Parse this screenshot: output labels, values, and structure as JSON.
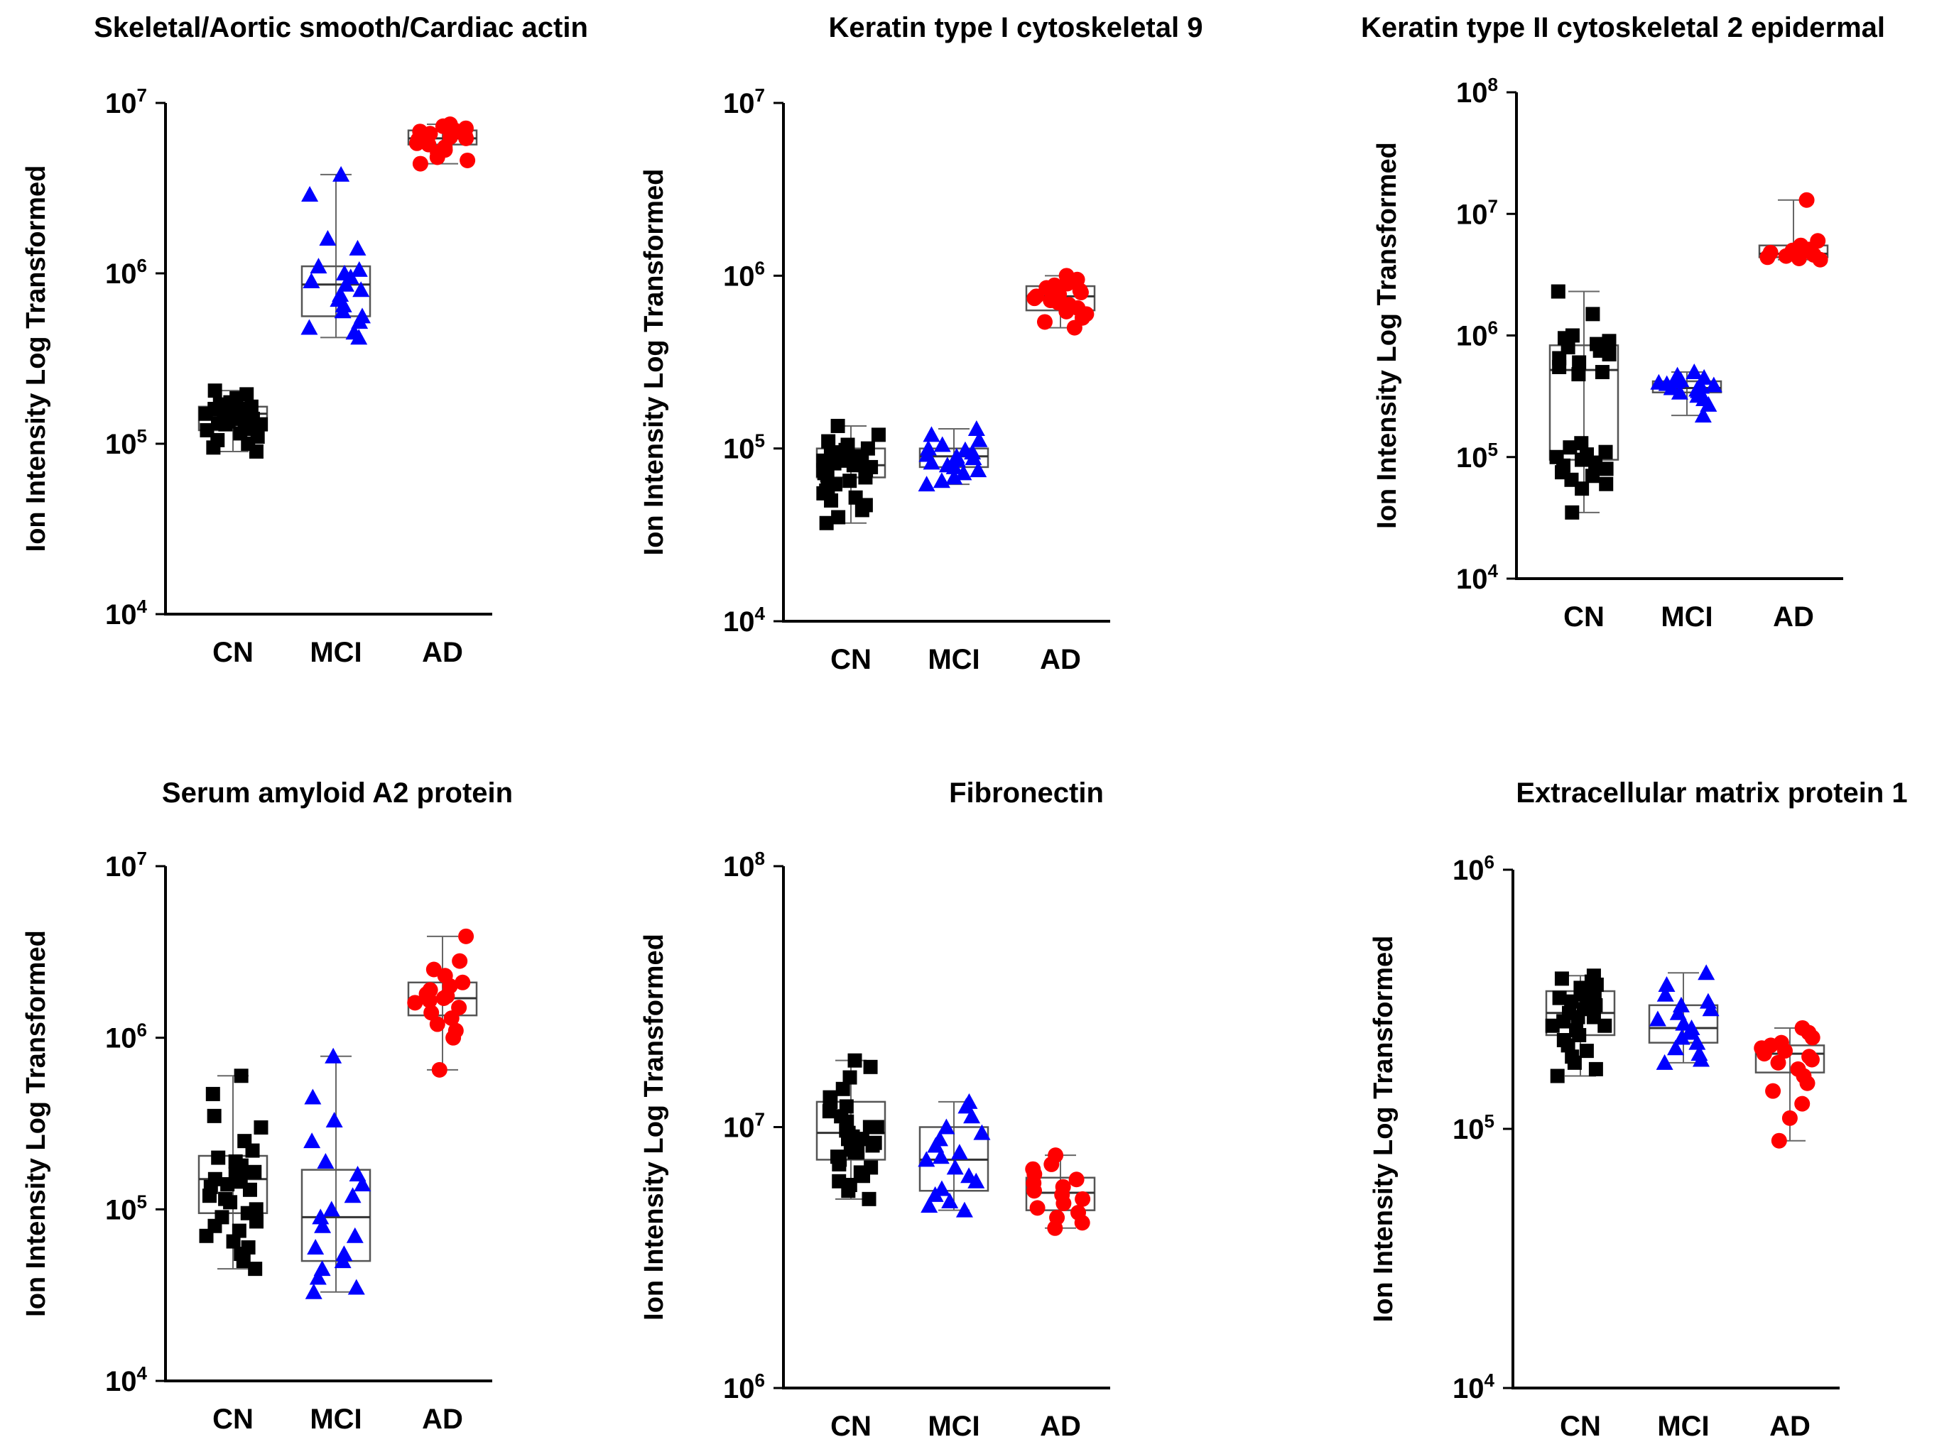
{
  "chart_data": [
    {
      "type": "box-scatter",
      "title": "Skeletal/Aortic smooth/Cardiac actin",
      "ylabel": "Ion Intensity Log  Transformed",
      "yscale": "log",
      "ylim_exp": [
        4,
        7
      ],
      "yticks_exp": [
        4,
        5,
        6,
        7
      ],
      "categories": [
        "CN",
        "MCI",
        "AD"
      ],
      "series": [
        {
          "name": "CN",
          "color": "#000000",
          "marker": "square",
          "box": {
            "min": 90000,
            "q1": 120000,
            "median": 150000,
            "q3": 165000,
            "max": 205000
          },
          "values": [
            205000,
            195000,
            185000,
            175000,
            170000,
            165000,
            160000,
            158000,
            155000,
            152000,
            150000,
            148000,
            145000,
            142000,
            140000,
            138000,
            135000,
            132000,
            130000,
            128000,
            125000,
            122000,
            120000,
            115000,
            110000,
            105000,
            100000,
            95000,
            90000,
            160000,
            150000,
            140000,
            130000,
            145000,
            155000
          ]
        },
        {
          "name": "MCI",
          "color": "#0000ff",
          "marker": "triangle",
          "box": {
            "min": 420000,
            "q1": 560000,
            "median": 860000,
            "q3": 1100000,
            "max": 3800000
          },
          "values": [
            3800000,
            2900000,
            1600000,
            1400000,
            1100000,
            1050000,
            1000000,
            950000,
            900000,
            860000,
            800000,
            750000,
            700000,
            650000,
            600000,
            560000,
            520000,
            480000,
            450000,
            420000
          ]
        },
        {
          "name": "AD",
          "color": "#ff0000",
          "marker": "circle",
          "box": {
            "min": 4400000,
            "q1": 5700000,
            "median": 6200000,
            "q3": 6900000,
            "max": 7500000
          },
          "values": [
            7500000,
            7300000,
            7100000,
            6900000,
            6800000,
            6600000,
            6400000,
            6300000,
            6200000,
            6100000,
            6000000,
            5900000,
            5800000,
            5700000,
            5500000,
            5300000,
            5100000,
            4800000,
            4600000,
            4400000
          ]
        }
      ]
    },
    {
      "type": "box-scatter",
      "title": "Keratin type I cytoskeletal 9",
      "ylabel": "Ion Intensity Log  Transformed",
      "yscale": "log",
      "ylim_exp": [
        4,
        7
      ],
      "yticks_exp": [
        4,
        5,
        6,
        7
      ],
      "categories": [
        "CN",
        "MCI",
        "AD"
      ],
      "series": [
        {
          "name": "CN",
          "color": "#000000",
          "marker": "square",
          "box": {
            "min": 37000,
            "q1": 68000,
            "median": 80000,
            "q3": 100000,
            "max": 135000
          },
          "values": [
            135000,
            120000,
            110000,
            105000,
            100000,
            98000,
            95000,
            92000,
            90000,
            88000,
            85000,
            82000,
            80000,
            78000,
            75000,
            72000,
            70000,
            68000,
            65000,
            62000,
            60000,
            57000,
            55000,
            52000,
            50000,
            47000,
            44000,
            40000,
            37000,
            90000,
            85000,
            75000
          ]
        },
        {
          "name": "MCI",
          "color": "#0000ff",
          "marker": "triangle",
          "box": {
            "min": 62000,
            "q1": 78000,
            "median": 90000,
            "q3": 100000,
            "max": 130000
          },
          "values": [
            130000,
            120000,
            112000,
            105000,
            100000,
            98000,
            95000,
            92000,
            90000,
            88000,
            86000,
            83000,
            80000,
            78000,
            75000,
            72000,
            68000,
            65000,
            62000
          ]
        },
        {
          "name": "AD",
          "color": "#ff0000",
          "marker": "circle",
          "box": {
            "min": 500000,
            "q1": 630000,
            "median": 760000,
            "q3": 870000,
            "max": 1000000
          },
          "values": [
            1000000,
            950000,
            900000,
            880000,
            850000,
            820000,
            800000,
            780000,
            760000,
            740000,
            720000,
            700000,
            680000,
            650000,
            620000,
            600000,
            570000,
            540000,
            500000
          ]
        }
      ]
    },
    {
      "type": "box-scatter",
      "title": "Keratin type II cytoskeletal 2 epidermal",
      "ylabel": "Ion Intensity Log  Transformed",
      "yscale": "log",
      "ylim_exp": [
        4,
        8
      ],
      "yticks_exp": [
        4,
        5,
        6,
        7,
        8
      ],
      "categories": [
        "CN",
        "MCI",
        "AD"
      ],
      "series": [
        {
          "name": "CN",
          "color": "#000000",
          "marker": "square",
          "box": {
            "min": 35000,
            "q1": 95000,
            "median": 520000,
            "q3": 830000,
            "max": 2300000
          },
          "values": [
            2300000,
            1500000,
            1000000,
            950000,
            900000,
            850000,
            800000,
            750000,
            700000,
            650000,
            600000,
            550000,
            500000,
            480000,
            130000,
            120000,
            110000,
            105000,
            100000,
            95000,
            90000,
            85000,
            80000,
            75000,
            70000,
            65000,
            60000,
            55000,
            35000
          ]
        },
        {
          "name": "MCI",
          "color": "#0000ff",
          "marker": "triangle",
          "box": {
            "min": 220000,
            "q1": 340000,
            "median": 370000,
            "q3": 420000,
            "max": 500000
          },
          "values": [
            500000,
            470000,
            450000,
            430000,
            420000,
            410000,
            400000,
            390000,
            380000,
            370000,
            360000,
            350000,
            340000,
            320000,
            300000,
            270000,
            220000
          ]
        },
        {
          "name": "AD",
          "color": "#ff0000",
          "marker": "circle",
          "box": {
            "min": 4200000,
            "q1": 4400000,
            "median": 4700000,
            "q3": 5500000,
            "max": 13000000
          },
          "values": [
            13000000,
            6000000,
            5500000,
            5300000,
            5100000,
            5000000,
            4900000,
            4800000,
            4700000,
            4600000,
            4500000,
            4400000,
            4300000,
            4200000
          ]
        }
      ]
    },
    {
      "type": "box-scatter",
      "title": "Serum amyloid A2 protein",
      "ylabel": "Ion Intensity Log  Transformed",
      "yscale": "log",
      "ylim_exp": [
        4,
        7
      ],
      "yticks_exp": [
        4,
        5,
        6,
        7
      ],
      "categories": [
        "CN",
        "MCI",
        "AD"
      ],
      "series": [
        {
          "name": "CN",
          "color": "#000000",
          "marker": "square",
          "box": {
            "min": 45000,
            "q1": 95000,
            "median": 150000,
            "q3": 205000,
            "max": 600000
          },
          "values": [
            600000,
            470000,
            350000,
            300000,
            250000,
            220000,
            200000,
            190000,
            180000,
            170000,
            160000,
            150000,
            145000,
            140000,
            130000,
            120000,
            110000,
            100000,
            95000,
            90000,
            85000,
            80000,
            75000,
            70000,
            65000,
            60000,
            55000,
            50000,
            45000,
            165000,
            135000,
            115000
          ]
        },
        {
          "name": "MCI",
          "color": "#0000ff",
          "marker": "triangle",
          "box": {
            "min": 33000,
            "q1": 50000,
            "median": 90000,
            "q3": 170000,
            "max": 780000
          },
          "values": [
            780000,
            450000,
            330000,
            250000,
            190000,
            160000,
            140000,
            120000,
            100000,
            90000,
            80000,
            70000,
            60000,
            55000,
            50000,
            45000,
            40000,
            35000,
            33000
          ]
        },
        {
          "name": "AD",
          "color": "#ff0000",
          "marker": "circle",
          "box": {
            "min": 650000,
            "q1": 1350000,
            "median": 1700000,
            "q3": 2100000,
            "max": 3900000
          },
          "values": [
            3900000,
            2800000,
            2500000,
            2300000,
            2100000,
            2000000,
            1900000,
            1800000,
            1750000,
            1700000,
            1650000,
            1600000,
            1500000,
            1400000,
            1300000,
            1200000,
            1100000,
            1000000,
            650000
          ]
        }
      ]
    },
    {
      "type": "box-scatter",
      "title": "Fibronectin",
      "ylabel": "Ion Intensity Log  Transformed",
      "yscale": "log",
      "ylim_exp": [
        6,
        8
      ],
      "yticks_exp": [
        6,
        7,
        8
      ],
      "categories": [
        "CN",
        "MCI",
        "AD"
      ],
      "series": [
        {
          "name": "CN",
          "color": "#000000",
          "marker": "square",
          "box": {
            "min": 5300000,
            "q1": 7500000,
            "median": 9500000,
            "q3": 12500000,
            "max": 18000000
          },
          "values": [
            18000000,
            17000000,
            15500000,
            14000000,
            13000000,
            12500000,
            12000000,
            11500000,
            11000000,
            10500000,
            10000000,
            9700000,
            9500000,
            9200000,
            9000000,
            8700000,
            8500000,
            8200000,
            8000000,
            7700000,
            7500000,
            7200000,
            7000000,
            6700000,
            6500000,
            6200000,
            6000000,
            5700000,
            5300000,
            10000000,
            9000000,
            8000000
          ]
        },
        {
          "name": "MCI",
          "color": "#0000ff",
          "marker": "triangle",
          "box": {
            "min": 4800000,
            "q1": 5700000,
            "median": 7500000,
            "q3": 10000000,
            "max": 12500000
          },
          "values": [
            12500000,
            12000000,
            11000000,
            10000000,
            9500000,
            9000000,
            8500000,
            8000000,
            7700000,
            7500000,
            7000000,
            6500000,
            6200000,
            5800000,
            5500000,
            5200000,
            5000000,
            4800000
          ]
        },
        {
          "name": "AD",
          "color": "#ff0000",
          "marker": "circle",
          "box": {
            "min": 4100000,
            "q1": 4800000,
            "median": 5600000,
            "q3": 6400000,
            "max": 7800000
          },
          "values": [
            7800000,
            7200000,
            6900000,
            6600000,
            6300000,
            6100000,
            5900000,
            5700000,
            5500000,
            5300000,
            5100000,
            4900000,
            4700000,
            4500000,
            4300000,
            4100000
          ]
        }
      ]
    },
    {
      "type": "box-scatter",
      "title": "Extracellular matrix protein 1",
      "ylabel": "Ion Intensity Log  Transformed",
      "yscale": "log",
      "ylim_exp": [
        4,
        6
      ],
      "yticks_exp": [
        4,
        5,
        6
      ],
      "categories": [
        "CN",
        "MCI",
        "AD"
      ],
      "series": [
        {
          "name": "CN",
          "color": "#000000",
          "marker": "square",
          "box": {
            "min": 160000,
            "q1": 230000,
            "median": 280000,
            "q3": 340000,
            "max": 390000
          },
          "values": [
            390000,
            380000,
            370000,
            360000,
            350000,
            340000,
            330000,
            320000,
            310000,
            300000,
            290000,
            280000,
            270000,
            260000,
            250000,
            240000,
            230000,
            220000,
            210000,
            200000,
            190000,
            180000,
            170000,
            160000,
            330000,
            300000,
            270000,
            250000
          ]
        },
        {
          "name": "MCI",
          "color": "#0000ff",
          "marker": "triangle",
          "box": {
            "min": 180000,
            "q1": 215000,
            "median": 245000,
            "q3": 300000,
            "max": 400000
          },
          "values": [
            400000,
            360000,
            330000,
            310000,
            300000,
            290000,
            280000,
            265000,
            255000,
            245000,
            235000,
            225000,
            215000,
            205000,
            195000,
            185000,
            180000
          ]
        },
        {
          "name": "AD",
          "color": "#ff0000",
          "marker": "circle",
          "box": {
            "min": 90000,
            "q1": 165000,
            "median": 195000,
            "q3": 210000,
            "max": 245000
          },
          "values": [
            245000,
            235000,
            225000,
            215000,
            210000,
            205000,
            200000,
            195000,
            190000,
            185000,
            180000,
            170000,
            160000,
            150000,
            140000,
            125000,
            110000,
            90000
          ]
        }
      ]
    }
  ]
}
